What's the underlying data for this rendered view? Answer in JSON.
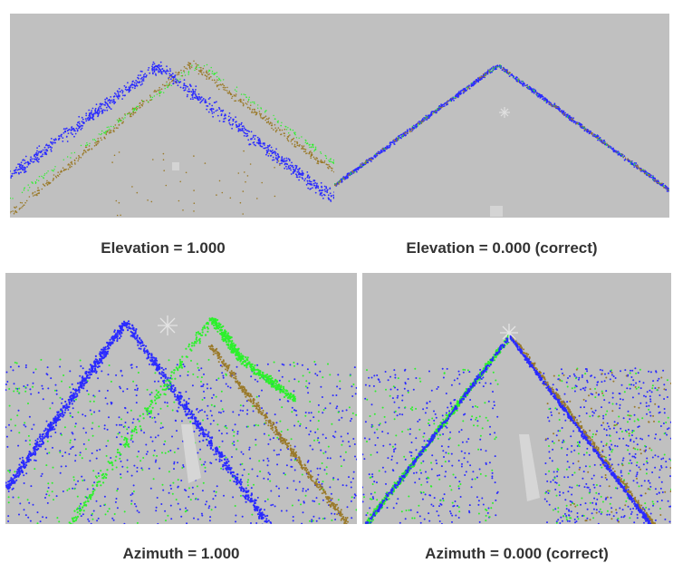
{
  "figure": {
    "panels": [
      {
        "id": "elevation-wrong",
        "caption": "Elevation = 1.000"
      },
      {
        "id": "elevation-correct",
        "caption": "Elevation = 0.000 (correct)"
      },
      {
        "id": "azimuth-wrong",
        "caption": "Azimuth = 1.000"
      },
      {
        "id": "azimuth-correct",
        "caption": "Azimuth = 0.000 (correct)"
      }
    ],
    "colors": {
      "background": "#c0c0c0",
      "blue_points": "#2b2bff",
      "green_points": "#2cf02c",
      "brown_points": "#9a7a2a",
      "marker": "#e8e8e8"
    }
  }
}
